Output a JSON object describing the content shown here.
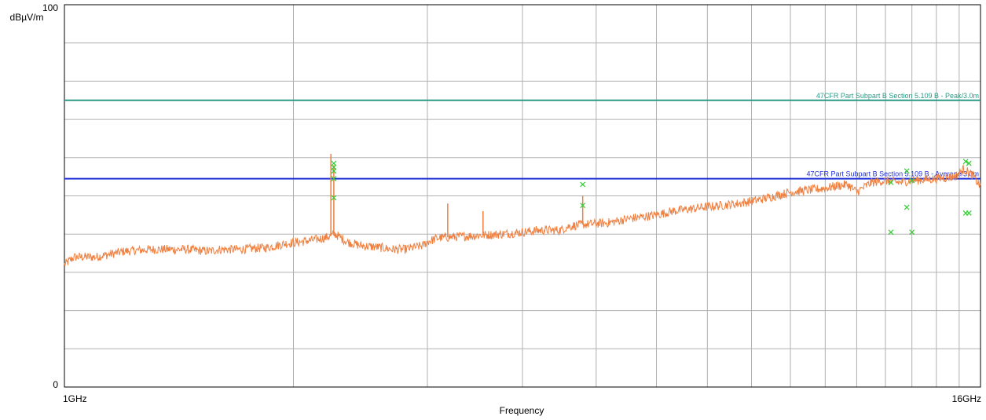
{
  "chart_data": {
    "type": "line",
    "title": "",
    "xlabel": "Frequency",
    "ylabel": "dBµV/m",
    "x_scale": "log",
    "x_unit": "GHz",
    "xlim": [
      1,
      16
    ],
    "ylim": [
      0,
      100
    ],
    "x_tick_labels": [
      "1GHz",
      "16GHz"
    ],
    "y_tick_labels": [
      "0",
      "100"
    ],
    "grid": true,
    "limit_lines": [
      {
        "name": "47CFR Part Subpart B Section 5.109 B - Peak/3.0m",
        "value": 75,
        "color": "#2a9a86"
      },
      {
        "name": "47CFR Part Subpart B Section 5.109 B - Average/3.0m",
        "value": 54.5,
        "color": "#1f2fd6"
      }
    ],
    "series": [
      {
        "color": "#f08040",
        "x": [
          1.0,
          1.03,
          1.1,
          1.2,
          1.3,
          1.45,
          1.55,
          1.6,
          1.7,
          1.85,
          1.95,
          2.05,
          2.2,
          2.27,
          2.35,
          2.45,
          2.6,
          2.7,
          2.8,
          2.96,
          3.0,
          3.1,
          3.4,
          3.75,
          4.0,
          4.2,
          4.48,
          4.6,
          4.8,
          5.2,
          5.5,
          6.0,
          6.3,
          6.6,
          6.9,
          7.3,
          7.7,
          8.2,
          8.6,
          9.0,
          9.5,
          10.0,
          10.3,
          10.7,
          11.0,
          11.5,
          12.0,
          12.5,
          13.0,
          14.0,
          14.8,
          15.2,
          15.6,
          16.0
        ],
        "y": [
          32,
          34,
          34,
          35.5,
          36,
          36,
          35.5,
          36,
          36,
          36.5,
          37.5,
          38,
          39,
          40,
          38,
          37,
          36.5,
          36,
          36,
          37,
          38,
          39,
          39.5,
          40,
          40.5,
          41,
          41,
          42,
          42.5,
          43,
          44,
          45,
          46,
          46.5,
          47,
          47.5,
          48,
          49,
          50,
          51,
          51.5,
          52,
          52.5,
          53,
          51,
          53.5,
          54,
          53.5,
          54,
          54.5,
          55,
          57,
          55.5,
          52.5
        ]
      }
    ],
    "spikes": [
      {
        "x": 2.24,
        "y": 61
      },
      {
        "x": 2.26,
        "y": 58
      },
      {
        "x": 3.19,
        "y": 48
      },
      {
        "x": 3.55,
        "y": 46
      },
      {
        "x": 4.8,
        "y": 50
      }
    ],
    "markers": {
      "color": "#33cc33",
      "points": [
        {
          "x": 2.26,
          "y": 58.5
        },
        {
          "x": 2.26,
          "y": 57.5
        },
        {
          "x": 2.26,
          "y": 56.5
        },
        {
          "x": 2.26,
          "y": 54.5
        },
        {
          "x": 2.26,
          "y": 49.5
        },
        {
          "x": 4.8,
          "y": 53
        },
        {
          "x": 4.8,
          "y": 47.5
        },
        {
          "x": 12.2,
          "y": 53.5
        },
        {
          "x": 12.2,
          "y": 40.5
        },
        {
          "x": 12.8,
          "y": 56.5
        },
        {
          "x": 12.8,
          "y": 47
        },
        {
          "x": 13.0,
          "y": 54
        },
        {
          "x": 13.0,
          "y": 40.5
        },
        {
          "x": 15.3,
          "y": 59
        },
        {
          "x": 15.3,
          "y": 45.5
        },
        {
          "x": 15.45,
          "y": 58.5
        },
        {
          "x": 15.45,
          "y": 45.5
        }
      ]
    }
  }
}
